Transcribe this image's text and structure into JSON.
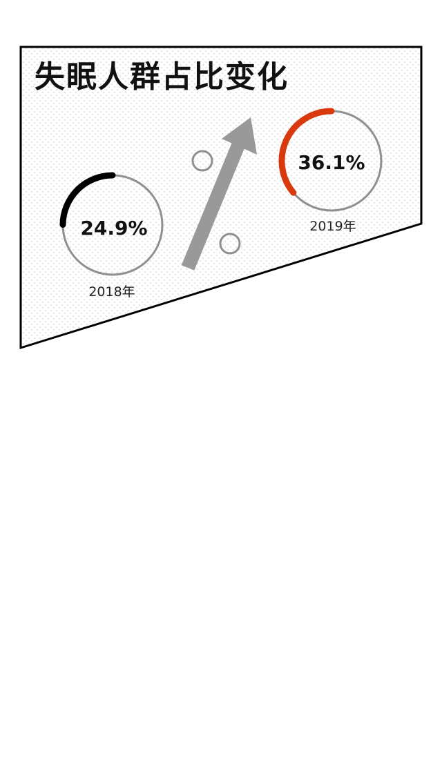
{
  "chart_data": {
    "type": "pie",
    "title": "失眠人群占比变化",
    "categories": [
      "2018年",
      "2019年"
    ],
    "values": [
      24.9,
      36.1
    ],
    "value_labels": [
      "24.9%",
      "36.1%"
    ],
    "unit": "%",
    "trend": "increase",
    "colors": {
      "ring_track": "#8f8f8f",
      "arc_2018": "#000000",
      "arc_2019": "#d83a0d",
      "arrow": "#999999",
      "border": "#000000",
      "pattern": "#e6e6e6"
    }
  }
}
